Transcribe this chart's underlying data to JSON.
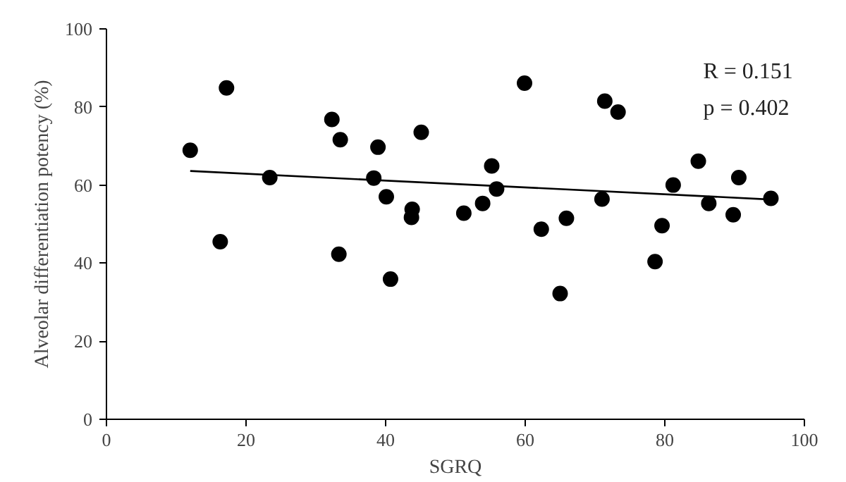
{
  "chart_data": {
    "type": "scatter",
    "xlabel": "SGRQ",
    "ylabel": "Alveolar differentiation potency (%)",
    "xlim": [
      0,
      100
    ],
    "ylim": [
      0,
      100
    ],
    "xticks": [
      0,
      20,
      40,
      60,
      80,
      100
    ],
    "yticks": [
      0,
      20,
      40,
      60,
      80,
      100
    ],
    "grid": false,
    "marker": "circle",
    "annotations": [
      "R = 0.151",
      "p = 0.402"
    ],
    "series": [
      {
        "color": "#000000",
        "x": [
          12.0,
          17.2,
          16.3,
          23.4,
          32.3,
          33.5,
          33.3,
          38.9,
          38.3,
          40.1,
          40.7,
          45.1,
          43.8,
          43.7,
          51.2,
          59.9,
          53.9,
          55.2,
          55.9,
          62.3,
          65.9,
          65.0,
          71.4,
          73.3,
          71.0,
          79.6,
          78.6,
          81.2,
          84.8,
          86.3,
          90.6,
          89.8,
          95.2
        ],
        "values": [
          68.9,
          84.9,
          45.5,
          61.9,
          76.8,
          71.6,
          42.3,
          69.7,
          61.8,
          57.0,
          35.9,
          73.5,
          53.8,
          51.7,
          52.8,
          86.1,
          55.3,
          64.9,
          59.0,
          48.7,
          51.5,
          32.2,
          81.5,
          78.7,
          56.4,
          49.6,
          40.4,
          60.0,
          66.1,
          55.3,
          61.9,
          52.4,
          56.6
        ]
      },
      {
        "type": "line",
        "color": "#000000",
        "x": [
          12.0,
          95.2
        ],
        "values": [
          63.6,
          56.3
        ],
        "line_style": "solid",
        "marker": "none"
      }
    ]
  }
}
